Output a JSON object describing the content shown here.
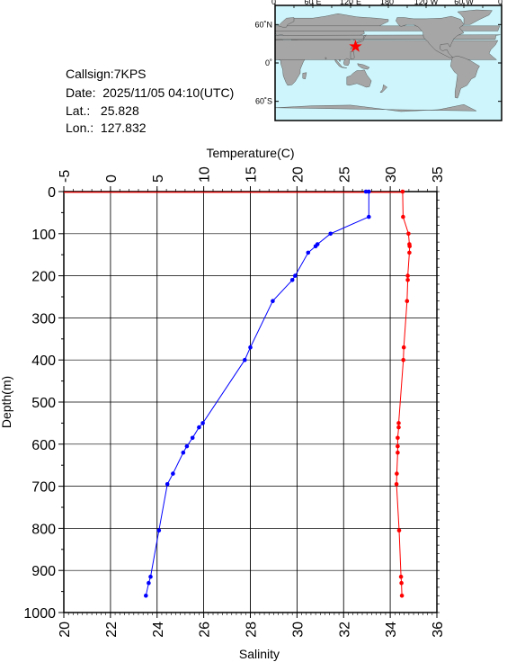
{
  "station": {
    "callsign_label": "Callsign:",
    "callsign": "7KPS",
    "date_label": "Date:",
    "date": "2025/11/05 04:10(UTC)",
    "lat_label": "Lat.:",
    "lat": "25.828",
    "lon_label": "Lon.:",
    "lon": "127.832"
  },
  "map": {
    "top_labels": [
      "0˚",
      "60˚E",
      "120˚E",
      "180˚",
      "120˚W",
      "60˚W",
      "0˚"
    ],
    "right_labels": [
      "60˚N",
      "0˚",
      "60˚S"
    ],
    "ocean_color": "#cdf5fb",
    "land_color": "#a6a6a6",
    "marker_color": "#ff0000",
    "marker": {
      "lon": 127.832,
      "lat": 25.828
    }
  },
  "chart_data": {
    "type": "line",
    "y_axis": {
      "label": "Depth(m)",
      "range": [
        0,
        1000
      ],
      "ticks": [
        0,
        100,
        200,
        300,
        400,
        500,
        600,
        700,
        800,
        900,
        1000
      ],
      "inverted": true
    },
    "x_top_axis": {
      "label": "Temperature(C)",
      "range": [
        -5,
        35
      ],
      "ticks": [
        -5,
        0,
        5,
        10,
        15,
        20,
        25,
        30,
        35
      ]
    },
    "x_bottom_axis": {
      "label": "Salinity",
      "range": [
        20,
        36
      ],
      "ticks": [
        20,
        22,
        24,
        26,
        28,
        30,
        32,
        34,
        36
      ]
    },
    "grid": true,
    "series": [
      {
        "axis": "temperature",
        "color": "#0000ff",
        "points": [
          [
            27.4,
            0
          ],
          [
            27.7,
            0
          ],
          [
            27.7,
            60
          ],
          [
            23.6,
            100
          ],
          [
            22.2,
            125
          ],
          [
            22.0,
            130
          ],
          [
            21.2,
            145
          ],
          [
            19.8,
            200
          ],
          [
            19.5,
            210
          ],
          [
            17.4,
            260
          ],
          [
            15.0,
            370
          ],
          [
            14.4,
            400
          ],
          [
            9.9,
            550
          ],
          [
            9.5,
            560
          ],
          [
            8.8,
            585
          ],
          [
            8.2,
            605
          ],
          [
            7.8,
            620
          ],
          [
            6.7,
            670
          ],
          [
            6.1,
            695
          ],
          [
            5.2,
            805
          ],
          [
            4.3,
            915
          ],
          [
            4.1,
            930
          ],
          [
            3.8,
            960
          ]
        ]
      },
      {
        "axis": "salinity",
        "color": "#ff0000",
        "points": [
          [
            34.53,
            0
          ],
          [
            34.55,
            60
          ],
          [
            34.78,
            100
          ],
          [
            34.82,
            125
          ],
          [
            34.83,
            130
          ],
          [
            34.82,
            145
          ],
          [
            34.75,
            200
          ],
          [
            34.75,
            210
          ],
          [
            34.72,
            260
          ],
          [
            34.58,
            370
          ],
          [
            34.56,
            400
          ],
          [
            34.36,
            550
          ],
          [
            34.36,
            560
          ],
          [
            34.32,
            585
          ],
          [
            34.32,
            605
          ],
          [
            34.32,
            620
          ],
          [
            34.28,
            670
          ],
          [
            34.27,
            695
          ],
          [
            34.38,
            805
          ],
          [
            34.46,
            915
          ],
          [
            34.48,
            930
          ],
          [
            34.5,
            960
          ]
        ]
      }
    ]
  }
}
